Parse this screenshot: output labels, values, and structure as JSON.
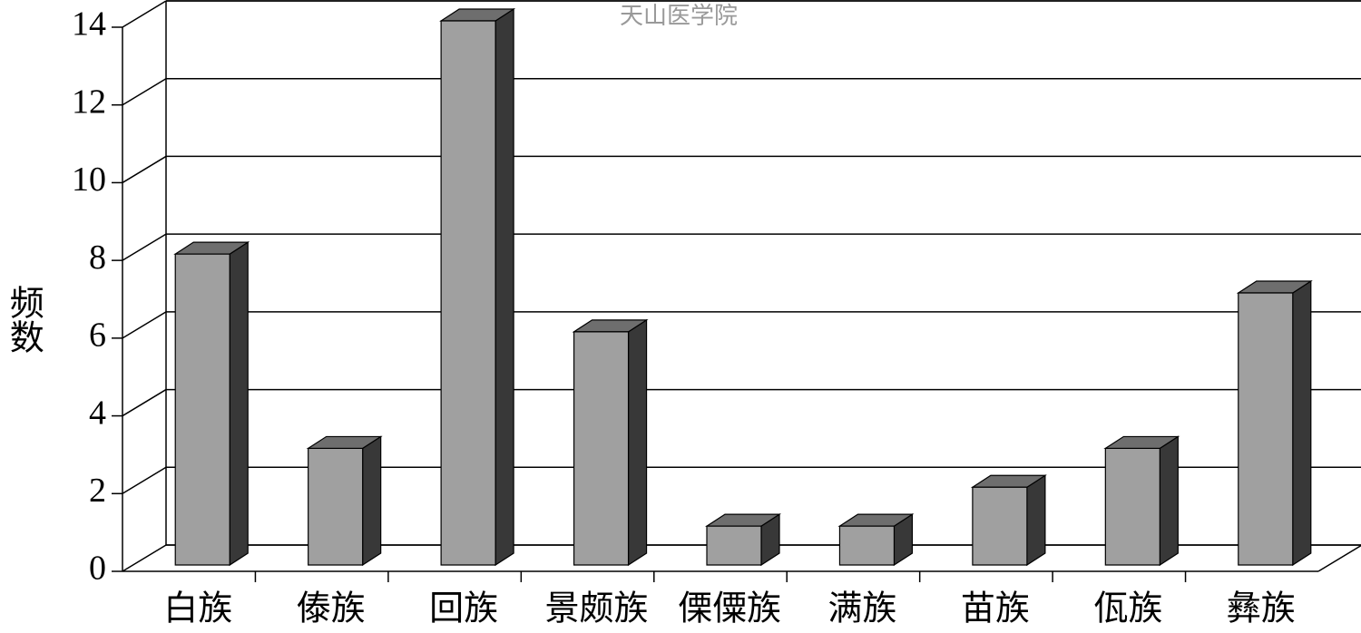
{
  "chart_data": {
    "type": "bar3d",
    "y_label": "频数",
    "annotation": "天山医学院",
    "categories": [
      "白族",
      "傣族",
      "回族",
      "景颇族",
      "傈僳族",
      "满族",
      "苗族",
      "佤族",
      "彝族"
    ],
    "values": [
      8,
      3,
      14,
      6,
      1,
      1,
      2,
      3,
      7
    ],
    "color": "#a0a0a0",
    "ylim": [
      0,
      14
    ],
    "yticks": [
      0,
      2,
      4,
      6,
      8,
      10,
      12,
      14
    ],
    "grid": true
  }
}
